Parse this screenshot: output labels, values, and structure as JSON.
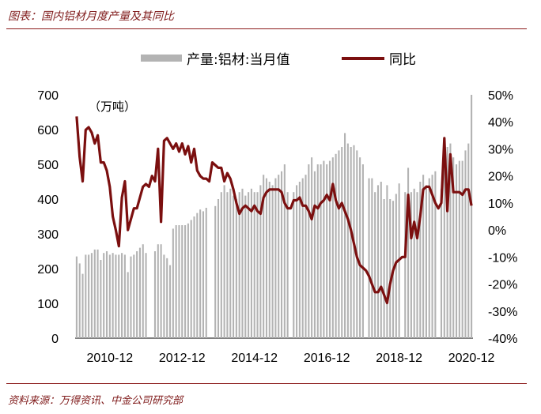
{
  "header": {
    "title": "图表：国内铝材月度产量及其同比"
  },
  "footer": {
    "source": "资料来源：万得资讯、中金公司研究部"
  },
  "chart_data": {
    "type": "bar+line",
    "left_unit_label": "（万吨）",
    "legend": [
      {
        "name": "产量:铝材:当月值",
        "kind": "bar",
        "color": "#b3b3b3"
      },
      {
        "name": "同比",
        "kind": "line",
        "color": "#7b0f0f"
      }
    ],
    "y_left": {
      "min": 0,
      "max": 700,
      "ticks": [
        0,
        100,
        200,
        300,
        400,
        500,
        600,
        700
      ]
    },
    "y_right": {
      "min": -40,
      "max": 50,
      "ticks": [
        "-40%",
        "-30%",
        "-20%",
        "-10%",
        "0%",
        "10%",
        "20%",
        "30%",
        "40%",
        "50%"
      ],
      "tick_values": [
        -40,
        -30,
        -20,
        -10,
        0,
        10,
        20,
        30,
        40,
        50
      ]
    },
    "x_ticks": [
      "2010-12",
      "2012-12",
      "2014-12",
      "2016-12",
      "2018-12",
      "2020-12"
    ],
    "start_month": "2010-01",
    "bars": [
      235,
      215,
      185,
      240,
      240,
      245,
      255,
      255,
      225,
      245,
      250,
      240,
      245,
      240,
      240,
      245,
      240,
      190,
      235,
      240,
      250,
      260,
      270,
      245,
      0,
      0,
      250,
      270,
      270,
      240,
      230,
      210,
      315,
      325,
      325,
      325,
      325,
      330,
      340,
      350,
      360,
      370,
      365,
      375,
      0,
      0,
      380,
      400,
      420,
      440,
      420,
      430,
      410,
      400,
      420,
      430,
      410,
      420,
      430,
      420,
      420,
      440,
      470,
      460,
      450,
      440,
      460,
      470,
      480,
      500,
      420,
      0,
      420,
      440,
      450,
      460,
      470,
      500,
      520,
      480,
      500,
      500,
      510,
      500,
      510,
      520,
      530,
      540,
      550,
      590,
      560,
      550,
      555,
      540,
      520,
      500,
      0,
      460,
      460,
      420,
      440,
      450,
      400,
      440,
      400,
      395,
      415,
      445,
      0,
      420,
      490,
      420,
      430,
      420,
      450,
      470,
      440,
      460,
      470,
      480,
      0,
      430,
      500,
      550,
      560,
      520,
      500,
      510,
      510,
      540,
      560,
      700
    ],
    "yoy": [
      42,
      27,
      18,
      37,
      38,
      36,
      32,
      35,
      25,
      25,
      22,
      16,
      5,
      0,
      -6,
      12,
      18,
      0,
      4,
      8,
      8,
      12,
      16,
      17,
      16,
      20,
      18,
      30,
      3,
      33,
      34,
      32,
      30,
      32,
      29,
      32,
      28,
      31,
      25,
      30,
      22,
      20,
      19,
      19,
      18,
      25,
      24,
      23,
      23,
      18,
      21,
      19,
      15,
      10,
      6,
      8,
      9,
      8,
      7,
      9,
      7,
      6,
      12,
      14,
      15,
      15,
      15,
      15,
      14,
      10,
      8,
      8,
      11,
      11,
      12,
      9,
      9,
      7,
      4,
      9,
      8,
      10,
      11,
      13,
      11,
      17,
      11,
      8,
      10,
      7,
      4,
      0,
      -5,
      -10,
      -13,
      -14,
      -15,
      -17,
      -20,
      -23,
      -23,
      -21,
      -24,
      -27,
      -20,
      -15,
      -12,
      -11,
      -10,
      -10,
      13,
      -3,
      3,
      -3,
      5,
      15,
      16,
      16,
      13,
      10,
      8,
      10,
      34,
      7,
      28,
      14,
      14,
      14,
      13,
      15,
      15,
      9
    ]
  }
}
